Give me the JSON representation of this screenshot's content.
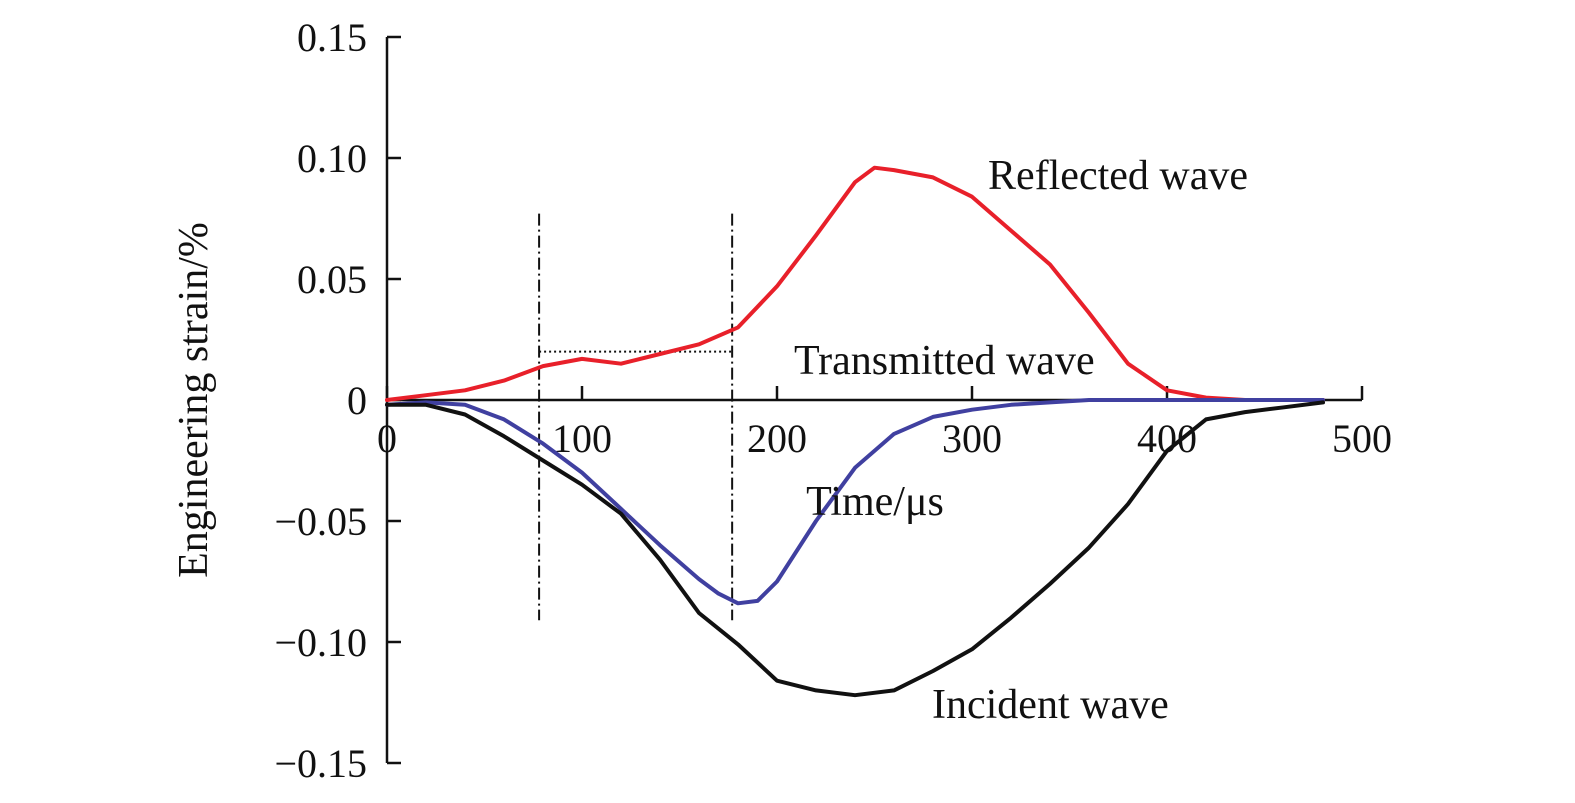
{
  "chart_data": {
    "type": "line",
    "xlabel": "Time/μs",
    "ylabel": "Engineering strain/%",
    "xlim": [
      0,
      500
    ],
    "ylim": [
      -0.15,
      0.15
    ],
    "x_ticks": [
      0,
      100,
      200,
      300,
      400,
      500
    ],
    "x_tick_labels": [
      "0",
      "100",
      "200",
      "300",
      "400",
      "500"
    ],
    "y_ticks": [
      0.15,
      0.1,
      0.05,
      0,
      -0.05,
      -0.1,
      -0.15
    ],
    "y_tick_labels": [
      "0.15",
      "0.10",
      "0.05",
      "0",
      "−0.05",
      "−0.10",
      "−0.15"
    ],
    "grid": false,
    "series": [
      {
        "name": "Reflected wave",
        "color": "#e8202a",
        "x": [
          0,
          20,
          40,
          60,
          80,
          100,
          120,
          140,
          160,
          180,
          200,
          220,
          240,
          250,
          260,
          280,
          300,
          320,
          340,
          360,
          380,
          400,
          420,
          440,
          460,
          480
        ],
        "y": [
          0,
          0.002,
          0.004,
          0.008,
          0.014,
          0.017,
          0.015,
          0.019,
          0.023,
          0.03,
          0.047,
          0.068,
          0.09,
          0.096,
          0.095,
          0.092,
          0.084,
          0.07,
          0.056,
          0.036,
          0.015,
          0.004,
          0.001,
          0,
          0,
          0
        ]
      },
      {
        "name": "Transmitted wave",
        "color": "#4040a0",
        "x": [
          0,
          20,
          40,
          60,
          80,
          100,
          120,
          140,
          160,
          170,
          180,
          190,
          200,
          220,
          240,
          260,
          280,
          300,
          320,
          340,
          360,
          380,
          400,
          420,
          440,
          460,
          480
        ],
        "y": [
          -0.002,
          -0.001,
          -0.002,
          -0.008,
          -0.018,
          -0.03,
          -0.045,
          -0.06,
          -0.074,
          -0.08,
          -0.084,
          -0.083,
          -0.075,
          -0.05,
          -0.028,
          -0.014,
          -0.007,
          -0.004,
          -0.002,
          -0.001,
          0,
          0,
          0,
          0,
          0,
          0,
          0
        ]
      },
      {
        "name": "Incident wave",
        "color": "#111111",
        "x": [
          0,
          20,
          40,
          60,
          80,
          100,
          120,
          140,
          160,
          180,
          200,
          220,
          240,
          260,
          280,
          300,
          320,
          340,
          360,
          380,
          400,
          420,
          440,
          460,
          480
        ],
        "y": [
          -0.002,
          -0.002,
          -0.006,
          -0.015,
          -0.025,
          -0.035,
          -0.047,
          -0.066,
          -0.088,
          -0.101,
          -0.116,
          -0.12,
          -0.122,
          -0.12,
          -0.112,
          -0.103,
          -0.09,
          -0.076,
          -0.061,
          -0.043,
          -0.021,
          -0.008,
          -0.005,
          -0.003,
          -0.001
        ]
      }
    ],
    "annotations": {
      "vertical_dashdot_x": [
        78,
        177
      ],
      "vertical_y_range": [
        -0.091,
        0.077
      ],
      "horizontal_dotted": {
        "y": 0.02,
        "x_range": [
          78,
          177
        ]
      }
    }
  },
  "labels": {
    "reflected": "Reflected wave",
    "transmitted": "Transmitted wave",
    "incident": "Incident wave"
  }
}
